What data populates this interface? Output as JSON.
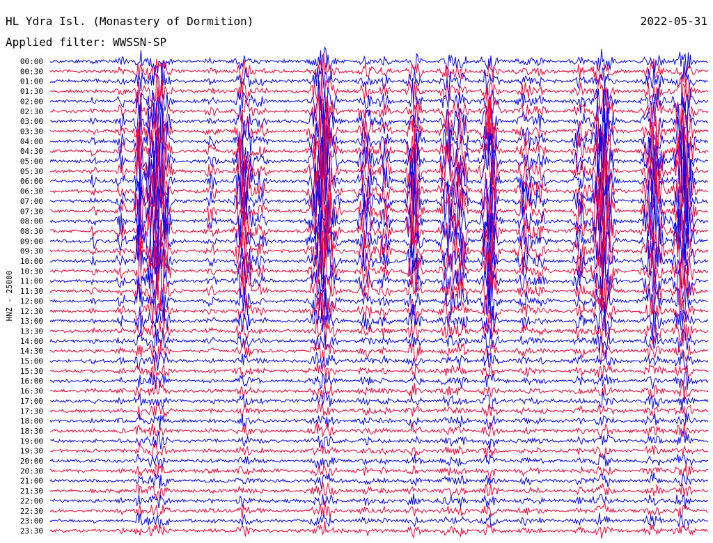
{
  "header": {
    "station": "HL Ydra Isl. (Monastery of Dormition)",
    "filter": "Applied filter: WWSSN-SP",
    "date": "2022-05-31"
  },
  "chart_data": {
    "type": "line",
    "title": "HL Ydra Isl. (Monastery of Dormition)",
    "subtitle": "Applied filter: WWSSN-SP",
    "date": "2022-05-31",
    "ylabel": "HNZ - 25000",
    "colors": [
      "#0000ff",
      "#ff0033"
    ],
    "grid": false,
    "rows": [
      "00:00",
      "00:30",
      "01:00",
      "01:30",
      "02:00",
      "02:30",
      "03:00",
      "03:30",
      "04:00",
      "04:30",
      "05:00",
      "05:30",
      "06:00",
      "06:30",
      "07:00",
      "07:30",
      "08:00",
      "08:30",
      "09:00",
      "09:30",
      "10:00",
      "10:30",
      "11:00",
      "11:30",
      "12:00",
      "12:30",
      "13:00",
      "13:30",
      "14:00",
      "14:30",
      "15:00",
      "15:30",
      "16:00",
      "16:30",
      "17:00",
      "17:30",
      "18:00",
      "18:30",
      "19:00",
      "19:30",
      "20:00",
      "20:30",
      "21:00",
      "21:30",
      "22:00",
      "22:30",
      "23:00",
      "23:30"
    ],
    "events": [
      {
        "x": 0.066,
        "amp": 14,
        "w": 0.004
      },
      {
        "x": 0.108,
        "amp": 26,
        "w": 0.006
      },
      {
        "x": 0.135,
        "amp": 90,
        "w": 0.005
      },
      {
        "x": 0.16,
        "amp": 80,
        "w": 0.012
      },
      {
        "x": 0.172,
        "amp": 45,
        "w": 0.01
      },
      {
        "x": 0.245,
        "amp": 16,
        "w": 0.008
      },
      {
        "x": 0.295,
        "amp": 70,
        "w": 0.01
      },
      {
        "x": 0.32,
        "amp": 18,
        "w": 0.008
      },
      {
        "x": 0.415,
        "amp": 95,
        "w": 0.015
      },
      {
        "x": 0.48,
        "amp": 40,
        "w": 0.01
      },
      {
        "x": 0.508,
        "amp": 30,
        "w": 0.008
      },
      {
        "x": 0.553,
        "amp": 75,
        "w": 0.009
      },
      {
        "x": 0.605,
        "amp": 50,
        "w": 0.01
      },
      {
        "x": 0.625,
        "amp": 55,
        "w": 0.008
      },
      {
        "x": 0.668,
        "amp": 85,
        "w": 0.01
      },
      {
        "x": 0.722,
        "amp": 35,
        "w": 0.01
      },
      {
        "x": 0.745,
        "amp": 22,
        "w": 0.008
      },
      {
        "x": 0.805,
        "amp": 40,
        "w": 0.008
      },
      {
        "x": 0.84,
        "amp": 85,
        "w": 0.013
      },
      {
        "x": 0.917,
        "amp": 70,
        "w": 0.012
      },
      {
        "x": 0.963,
        "amp": 95,
        "w": 0.012
      }
    ],
    "noise": 1.8
  }
}
